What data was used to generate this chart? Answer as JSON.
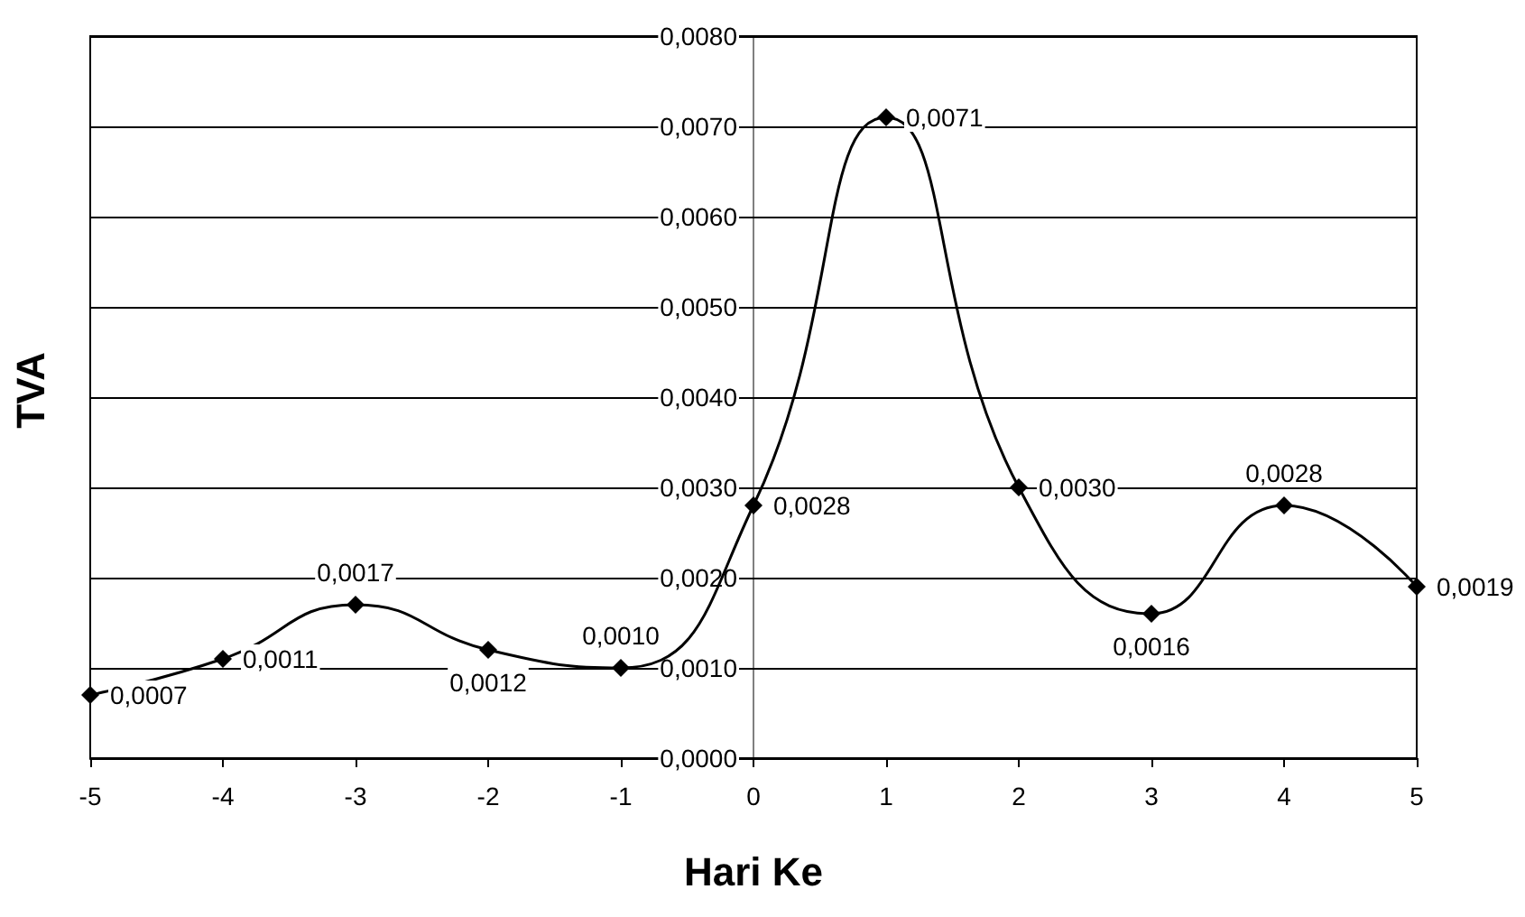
{
  "chart_data": {
    "type": "line",
    "xlabel": "Hari Ke",
    "ylabel": "TVA",
    "x": [
      -5,
      -4,
      -3,
      -2,
      -1,
      0,
      1,
      2,
      3,
      4,
      5
    ],
    "series": [
      {
        "color": "#000000",
        "values": [
          0.0007,
          0.0011,
          0.0017,
          0.0012,
          0.001,
          0.0028,
          0.0071,
          0.003,
          0.0016,
          0.0028,
          0.0019
        ],
        "value_labels": [
          "0,0007",
          "0,0011",
          "0,0017",
          "0,0012",
          "0,0010",
          "0,0028",
          "0,0071",
          "0,0030",
          "0,0016",
          "0,0028",
          "0,0019"
        ]
      }
    ],
    "xlim": [
      -5,
      5
    ],
    "xticks": [
      -5,
      -4,
      -3,
      -2,
      -1,
      0,
      1,
      2,
      3,
      4,
      5
    ],
    "ylim": [
      0,
      0.008
    ],
    "yticks": [
      {
        "value": 0,
        "label": "0,0000"
      },
      {
        "value": 0.001,
        "label": "0,0010"
      },
      {
        "value": 0.002,
        "label": "0,0020"
      },
      {
        "value": 0.003,
        "label": "0,0030"
      },
      {
        "value": 0.004,
        "label": "0,0040"
      },
      {
        "value": 0.005,
        "label": "0,0050"
      },
      {
        "value": 0.006,
        "label": "0,0060"
      },
      {
        "value": 0.007,
        "label": "0,0070"
      },
      {
        "value": 0.008,
        "label": "0,0080"
      }
    ],
    "grid": "y",
    "marker": "diamond",
    "line_style": "solid"
  }
}
